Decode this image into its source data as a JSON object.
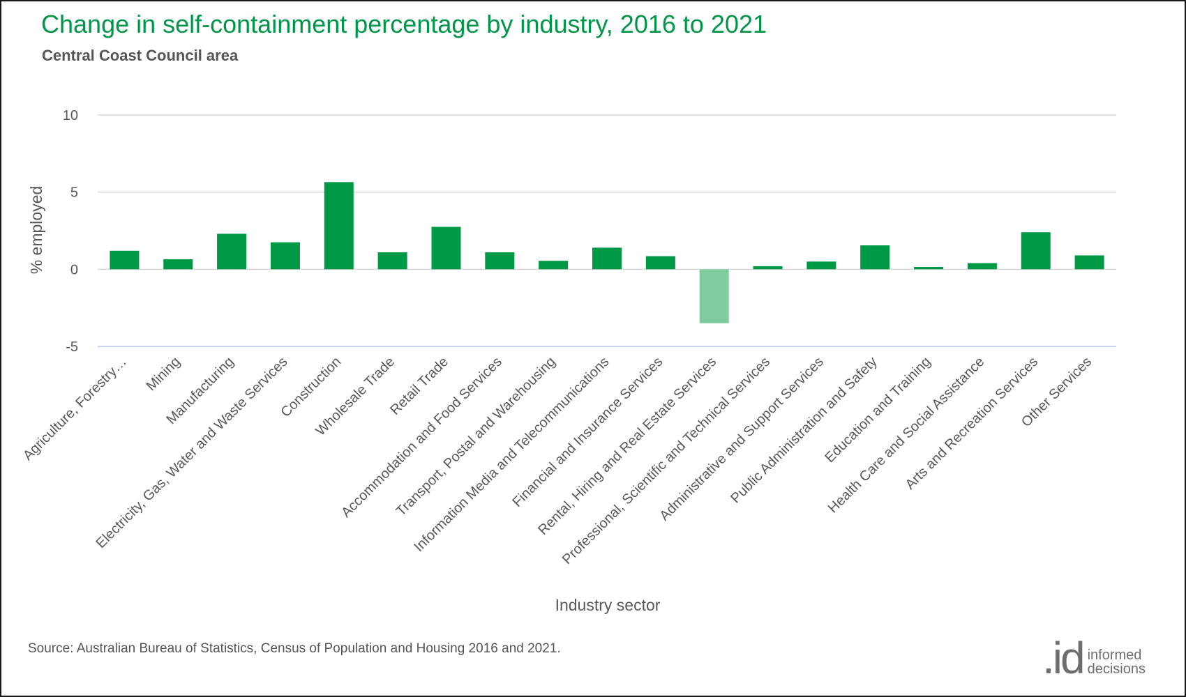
{
  "header": {
    "title": "Change in self-containment percentage by industry, 2016 to 2021",
    "subtitle": "Central Coast Council area"
  },
  "footer": {
    "source": "Source: Australian Bureau of Statistics, Census of Population and Housing 2016 and 2021.",
    "logo_mark": ".id",
    "logo_line1": "informed",
    "logo_line2": "decisions"
  },
  "colors": {
    "positive_bar": "#009a46",
    "negative_bar": "#80cc9f",
    "gridline": "#d9d9d9",
    "zero_line": "#d9d9d9",
    "bottom_line": "#b4c7e7",
    "tick_text": "#595959",
    "title": "#00964a"
  },
  "chart_data": {
    "type": "bar",
    "xlabel": "Industry sector",
    "ylabel": "% employed",
    "ylim": [
      -5,
      10
    ],
    "yticks": [
      10,
      5,
      0,
      -5
    ],
    "yticklabels": [
      "10",
      "5",
      "0",
      "-5"
    ],
    "grid": true,
    "legend": "none",
    "categories": [
      "Agriculture, Forestry…",
      "Mining",
      "Manufacturing",
      "Electricity, Gas, Water and Waste Services",
      "Construction",
      "Wholesale Trade",
      "Retail Trade",
      "Accommodation and Food Services",
      "Transport, Postal and Warehousing",
      "Information Media and Telecommunications",
      "Financial and Insurance Services",
      "Rental, Hiring and Real Estate Services",
      "Professional, Scientific and Technical Services",
      "Administrative and Support Services",
      "Public Administration and Safety",
      "Education and Training",
      "Health Care and Social Assistance",
      "Arts and Recreation Services",
      "Other Services"
    ],
    "values": [
      1.2,
      0.65,
      2.3,
      1.75,
      5.65,
      1.1,
      2.75,
      1.1,
      0.55,
      1.4,
      0.85,
      -3.5,
      0.2,
      0.5,
      1.55,
      0.15,
      0.4,
      2.4,
      0.9
    ]
  }
}
